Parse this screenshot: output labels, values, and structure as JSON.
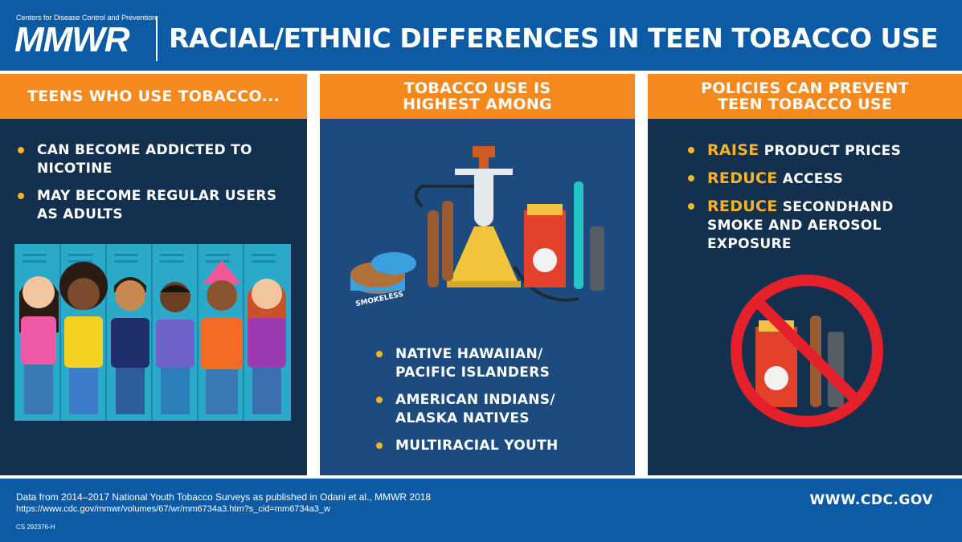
{
  "header": {
    "cdc_line": "Centers for Disease Control and Prevention",
    "logo": "MMWR",
    "title": "RACIAL/ETHNIC DIFFERENCES IN TEEN TOBACCO USE"
  },
  "panels": [
    {
      "heading": "TEENS WHO USE TOBACCO...",
      "bullets": [
        "CAN BECOME ADDICTED TO NICOTINE",
        "MAY BECOME REGULAR USERS AS ADULTS"
      ]
    },
    {
      "heading_line1": "TOBACCO USE IS",
      "heading_line2": "HIGHEST AMONG",
      "product_label": "SMOKELESS",
      "bullets": [
        {
          "line1": "NATIVE HAWAIIAN/",
          "line2": "PACIFIC ISLANDERS"
        },
        {
          "line1": "AMERICAN INDIANS/",
          "line2": "ALASKA NATIVES"
        },
        {
          "line1": "MULTIRACIAL YOUTH",
          "line2": ""
        }
      ]
    },
    {
      "heading_line1": "POLICIES CAN PREVENT",
      "heading_line2": "TEEN TOBACCO USE",
      "bullets": [
        {
          "highlight": "RAISE",
          "rest": "PRODUCT PRICES"
        },
        {
          "highlight": "REDUCE",
          "rest": "ACCESS"
        },
        {
          "highlight": "REDUCE",
          "rest": "SECONDHAND SMOKE AND AEROSOL EXPOSURE"
        }
      ]
    }
  ],
  "footer": {
    "source": "Data from 2014–2017 National Youth Tobacco Surveys as published in Odani et al., MMWR 2018",
    "url": "https://www.cdc.gov/mmwr/volumes/67/wr/mm6734a3.htm?s_cid=mm6734a3_w",
    "code": "CS 292376-H",
    "website": "WWW.CDC.GOV"
  },
  "colors": {
    "brand_blue": "#0d5ba5",
    "panel_navy": "#13304f",
    "accent_orange": "#f48a1f",
    "highlight_yellow": "#f7b32b",
    "no_symbol_red": "#e4202b"
  },
  "icons": [
    "hookah-icon",
    "cigar-icon",
    "cigarette-pack-icon",
    "e-cigarette-icon",
    "smokeless-tin-icon",
    "no-tobacco-icon",
    "teens-lockers-illustration"
  ]
}
